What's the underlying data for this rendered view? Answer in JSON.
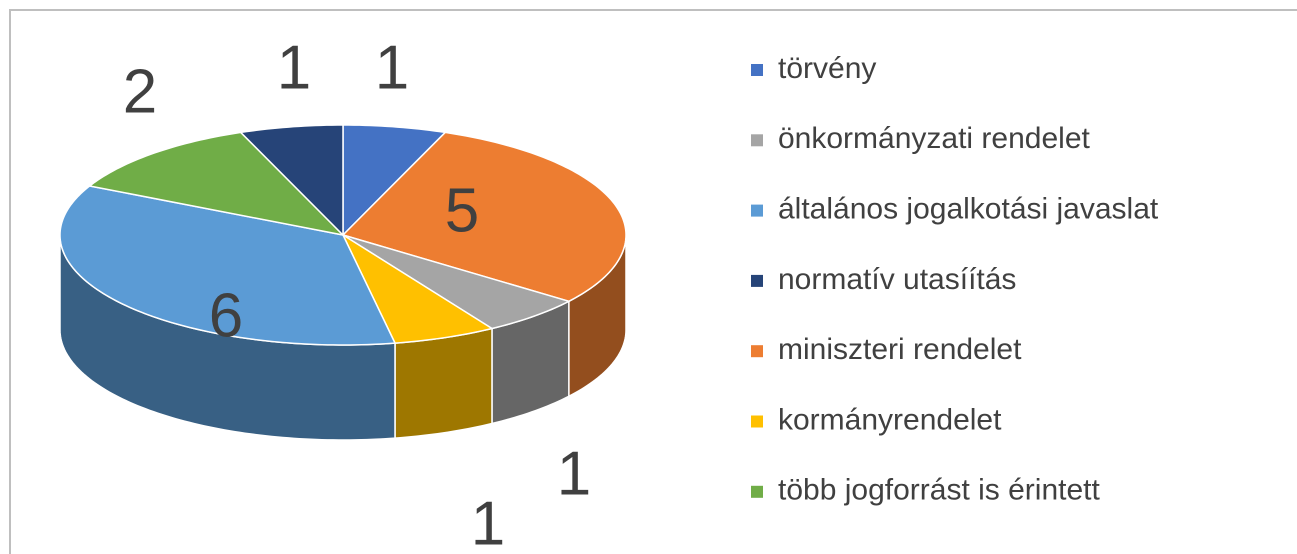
{
  "chart_data": {
    "type": "pie",
    "categories": [
      "törvény",
      "miniszteri rendelet",
      "önkormányzati rendelet",
      "kormányrendelet",
      "általános jogalkotási javaslat",
      "több jogforrást is érintett",
      "normatív utasíítás"
    ],
    "values": [
      1,
      5,
      1,
      1,
      6,
      2,
      1
    ],
    "colors": [
      "#4472c4",
      "#ed7d31",
      "#a5a5a5",
      "#ffc000",
      "#5b9bd5",
      "#70ad47",
      "#264478"
    ],
    "legend": "right"
  }
}
